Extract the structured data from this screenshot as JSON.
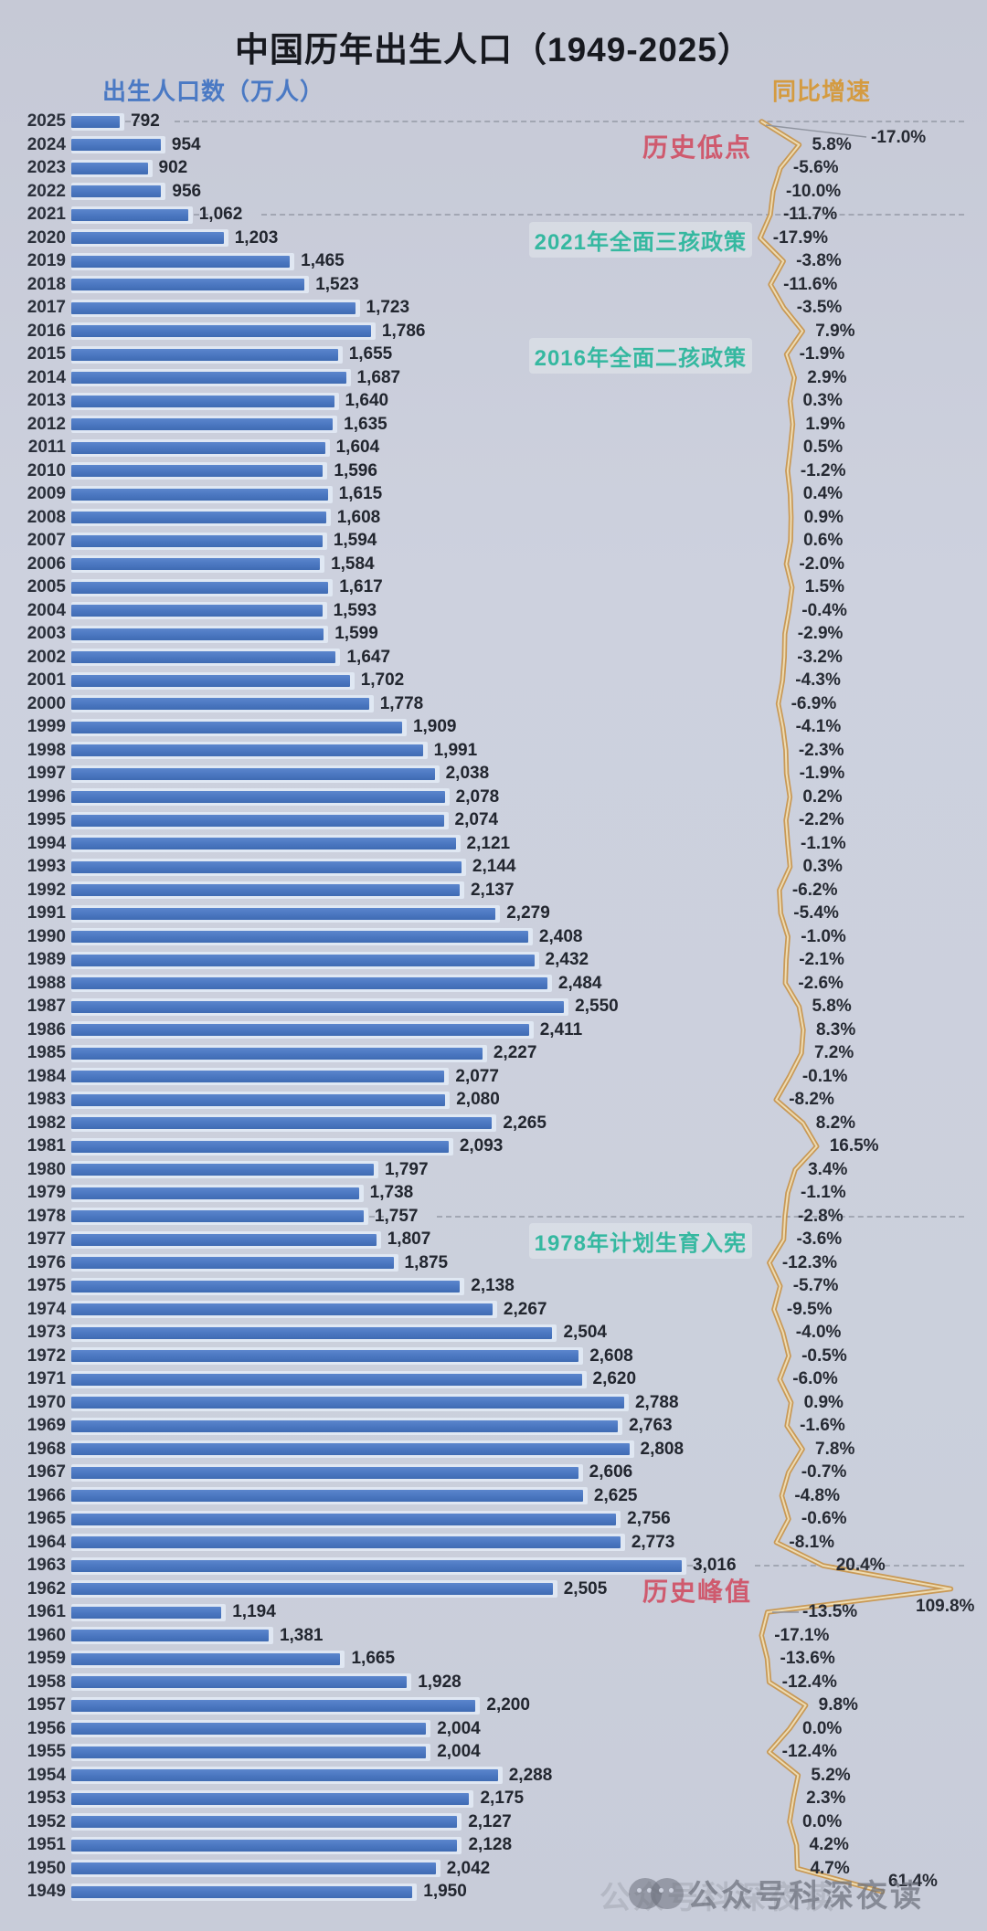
{
  "title": "中国历年出生人口（1949-2025）",
  "axis": {
    "left_label": "出生人口数（万人）",
    "right_label": "同比增速"
  },
  "annotations": [
    {
      "text": "历史低点",
      "style": "red",
      "year": 2024
    },
    {
      "text": "2021年全面三孩政策",
      "style": "teal",
      "year": 2020
    },
    {
      "text": "2016年全面二孩政策",
      "style": "teal",
      "year": 2015
    },
    {
      "text": "1978年计划生育入宪",
      "style": "teal",
      "year": 1977
    },
    {
      "text": "历史峰值",
      "style": "red",
      "year": 1962
    }
  ],
  "dashed_years": [
    2025,
    2021,
    1978,
    1963
  ],
  "watermark": {
    "text": "公众号科深夜读",
    "icon": "wechat-icon"
  },
  "colors": {
    "background": "#cbd0dc",
    "bar": "#4a76c0",
    "bar_track": "#e2e9f4",
    "line": "#c8964e",
    "line_core": "#f1e3bf",
    "dash": "#9499a6",
    "teal_annotation": "#35b8a0",
    "red_annotation": "#cf5a6e",
    "left_header": "#4a79c4",
    "right_header": "#d49b41"
  },
  "chart_data": {
    "type": "bar",
    "orientation": "horizontal",
    "title": "中国历年出生人口（1949-2025）",
    "xlabel": "出生人口数（万人）",
    "legend_position": "top",
    "grid": "dashed reference lines at years 2025, 2021, 1978, 1963",
    "categories": [
      2025,
      2024,
      2023,
      2022,
      2021,
      2020,
      2019,
      2018,
      2017,
      2016,
      2015,
      2014,
      2013,
      2012,
      2011,
      2010,
      2009,
      2008,
      2007,
      2006,
      2005,
      2004,
      2003,
      2002,
      2001,
      2000,
      1999,
      1998,
      1997,
      1996,
      1995,
      1994,
      1993,
      1992,
      1991,
      1990,
      1989,
      1988,
      1987,
      1986,
      1985,
      1984,
      1983,
      1982,
      1981,
      1980,
      1979,
      1978,
      1977,
      1976,
      1975,
      1974,
      1973,
      1972,
      1971,
      1970,
      1969,
      1968,
      1967,
      1966,
      1965,
      1964,
      1963,
      1962,
      1961,
      1960,
      1959,
      1958,
      1957,
      1956,
      1955,
      1954,
      1953,
      1952,
      1951,
      1950,
      1949
    ],
    "series": [
      {
        "name": "出生人口数（万人）",
        "type": "bar",
        "values": [
          792,
          954,
          902,
          956,
          1062,
          1203,
          1465,
          1523,
          1723,
          1786,
          1655,
          1687,
          1640,
          1635,
          1604,
          1596,
          1615,
          1608,
          1594,
          1584,
          1617,
          1593,
          1599,
          1647,
          1702,
          1778,
          1909,
          1991,
          2038,
          2078,
          2074,
          2121,
          2144,
          2137,
          2279,
          2408,
          2432,
          2484,
          2550,
          2411,
          2227,
          2077,
          2080,
          2265,
          2093,
          1797,
          1738,
          1757,
          1807,
          1875,
          2138,
          2267,
          2504,
          2608,
          2620,
          2788,
          2763,
          2808,
          2606,
          2625,
          2756,
          2773,
          3016,
          2505,
          1194,
          1381,
          1665,
          1928,
          2200,
          2004,
          2004,
          2288,
          2175,
          2127,
          2128,
          2042,
          1950
        ],
        "labels": [
          "792",
          "954",
          "902",
          "956",
          "1,062",
          "1,203",
          "1,465",
          "1,523",
          "1,723",
          "1,786",
          "1,655",
          "1,687",
          "1,640",
          "1,635",
          "1,604",
          "1,596",
          "1,615",
          "1,608",
          "1,594",
          "1,584",
          "1,617",
          "1,593",
          "1,599",
          "1,647",
          "1,702",
          "1,778",
          "1,909",
          "1,991",
          "2,038",
          "2,078",
          "2,074",
          "2,121",
          "2,144",
          "2,137",
          "2,279",
          "2,408",
          "2,432",
          "2,484",
          "2,550",
          "2,411",
          "2,227",
          "2,077",
          "2,080",
          "2,265",
          "2,093",
          "1,797",
          "1,738",
          "1,757",
          "1,807",
          "1,875",
          "2,138",
          "2,267",
          "2,504",
          "2,608",
          "2,620",
          "2,788",
          "2,763",
          "2,808",
          "2,606",
          "2,625",
          "2,756",
          "2,773",
          "3,016",
          "2,505",
          "1,194",
          "1,381",
          "1,665",
          "1,928",
          "2,200",
          "2,004",
          "2,004",
          "2,288",
          "2,175",
          "2,127",
          "2,128",
          "2,042",
          "1,950"
        ]
      },
      {
        "name": "同比增速",
        "type": "line",
        "unit": "%",
        "values": [
          -17.0,
          5.8,
          -5.6,
          -10.0,
          -11.7,
          -17.9,
          -3.8,
          -11.6,
          -3.5,
          7.9,
          -1.9,
          2.9,
          0.3,
          1.9,
          0.5,
          -1.2,
          0.4,
          0.9,
          0.6,
          -2.0,
          1.5,
          -0.4,
          -2.9,
          -3.2,
          -4.3,
          -6.9,
          -4.1,
          -2.3,
          -1.9,
          0.2,
          -2.2,
          -1.1,
          0.3,
          -6.2,
          -5.4,
          -1.0,
          -2.1,
          -2.6,
          5.8,
          8.3,
          7.2,
          -0.1,
          -8.2,
          8.2,
          16.5,
          3.4,
          -1.1,
          -2.8,
          -3.6,
          -12.3,
          -5.7,
          -9.5,
          -4.0,
          -0.5,
          -6.0,
          0.9,
          -1.6,
          7.8,
          -0.7,
          -4.8,
          -0.6,
          -8.1,
          20.4,
          109.8,
          -13.5,
          -17.1,
          -13.6,
          -12.4,
          9.8,
          0.0,
          -12.4,
          5.2,
          2.3,
          0.0,
          4.2,
          4.7,
          61.4
        ],
        "labels": [
          "-17.0%",
          "5.8%",
          "-5.6%",
          "-10.0%",
          "-11.7%",
          "-17.9%",
          "-3.8%",
          "-11.6%",
          "-3.5%",
          "7.9%",
          "-1.9%",
          "2.9%",
          "0.3%",
          "1.9%",
          "0.5%",
          "-1.2%",
          "0.4%",
          "0.9%",
          "0.6%",
          "-2.0%",
          "1.5%",
          "-0.4%",
          "-2.9%",
          "-3.2%",
          "-4.3%",
          "-6.9%",
          "-4.1%",
          "-2.3%",
          "-1.9%",
          "0.2%",
          "-2.2%",
          "-1.1%",
          "0.3%",
          "-6.2%",
          "-5.4%",
          "-1.0%",
          "-2.1%",
          "-2.6%",
          "5.8%",
          "8.3%",
          "7.2%",
          "-0.1%",
          "-8.2%",
          "8.2%",
          "16.5%",
          "3.4%",
          "-1.1%",
          "-2.8%",
          "-3.6%",
          "-12.3%",
          "-5.7%",
          "-9.5%",
          "-4.0%",
          "-0.5%",
          "-6.0%",
          "0.9%",
          "-1.6%",
          "7.8%",
          "-0.7%",
          "-4.8%",
          "-0.6%",
          "-8.1%",
          "20.4%",
          "109.8%",
          "-13.5%",
          "-17.1%",
          "-13.6%",
          "-12.4%",
          "9.8%",
          "0.0%",
          "-12.4%",
          "5.2%",
          "2.3%",
          "0.0%",
          "4.2%",
          "4.7%",
          "61.4%"
        ]
      }
    ]
  }
}
